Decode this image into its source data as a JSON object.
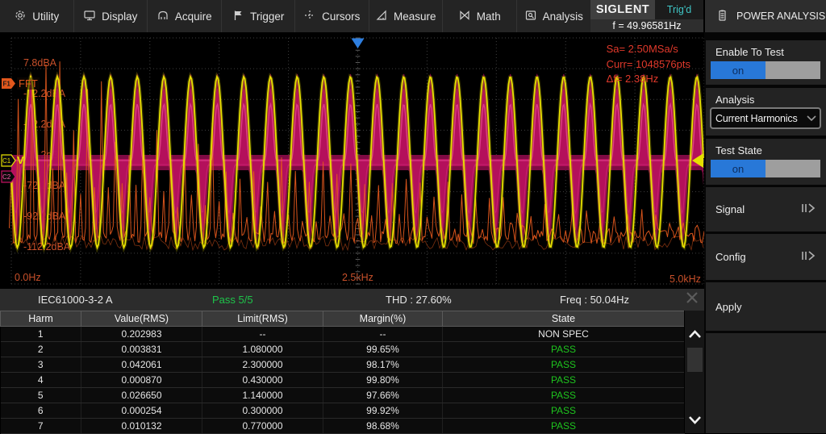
{
  "menu": {
    "items": [
      {
        "label": "Utility",
        "icon": "gear-icon"
      },
      {
        "label": "Display",
        "icon": "display-icon"
      },
      {
        "label": "Acquire",
        "icon": "acquire-icon"
      },
      {
        "label": "Trigger",
        "icon": "flag-icon"
      },
      {
        "label": "Cursors",
        "icon": "cursors-icon"
      },
      {
        "label": "Measure",
        "icon": "measure-icon"
      },
      {
        "label": "Math",
        "icon": "math-icon"
      },
      {
        "label": "Analysis",
        "icon": "analysis-icon"
      }
    ],
    "brand": "SIGLENT",
    "trigger_status": "Trig'd",
    "frequency_counter": "f = 49.96581Hz"
  },
  "panel": {
    "title": "POWER ANALYSIS",
    "enable_label": "Enable To Test",
    "enable_value": "on",
    "analysis_label": "Analysis",
    "analysis_value": "Current Harmonics",
    "test_state_label": "Test State",
    "test_state_value": "on",
    "signal_label": "Signal",
    "config_label": "Config",
    "apply_label": "Apply"
  },
  "scope": {
    "fft_label": "FFT",
    "f1_tag": "F1",
    "c1_tag": "C1",
    "c1_unit": "V",
    "c2_tag": "C2",
    "db_labels": [
      "7.8dBA",
      "-12.2dBA",
      "-32.2dBA",
      "-52.2dBA",
      "-72.2dBA",
      "-92.2dBA",
      "-112.2dBA"
    ],
    "freq_axis": [
      "0.0Hz",
      "2.5kHz",
      "5.0kHz"
    ],
    "acq_info": [
      "Sa=  2.50MSa/s",
      "Curr= 1048576pts",
      "Δf=  2.38Hz"
    ],
    "colors": {
      "voltage": "#e6e000",
      "current_outer": "#8e0b4a",
      "current_mid": "#c11161",
      "current_hi": "#ff5fae",
      "current_hi2": "#e23a92",
      "fft": "#e2571c",
      "info": "#e0392b",
      "trigger": "#2e7fe0",
      "grid": "#3f3f3f"
    }
  },
  "results": {
    "standard": "IEC61000-3-2 A",
    "pass": "Pass 5/5",
    "thd": "THD : 27.60%",
    "freq": "Freq : 50.04Hz"
  },
  "table": {
    "headers": [
      "Harm",
      "Value(RMS)",
      "Limit(RMS)",
      "Margin(%)",
      "State"
    ],
    "rows": [
      {
        "harm": "1",
        "value": "0.202983",
        "limit": "--",
        "margin": "--",
        "state": "NON SPEC"
      },
      {
        "harm": "2",
        "value": "0.003831",
        "limit": "1.080000",
        "margin": "99.65%",
        "state": "PASS"
      },
      {
        "harm": "3",
        "value": "0.042061",
        "limit": "2.300000",
        "margin": "98.17%",
        "state": "PASS"
      },
      {
        "harm": "4",
        "value": "0.000870",
        "limit": "0.430000",
        "margin": "99.80%",
        "state": "PASS"
      },
      {
        "harm": "5",
        "value": "0.026650",
        "limit": "1.140000",
        "margin": "97.66%",
        "state": "PASS"
      },
      {
        "harm": "6",
        "value": "0.000254",
        "limit": "0.300000",
        "margin": "99.92%",
        "state": "PASS"
      },
      {
        "harm": "7",
        "value": "0.010132",
        "limit": "0.770000",
        "margin": "98.68%",
        "state": "PASS"
      }
    ]
  }
}
